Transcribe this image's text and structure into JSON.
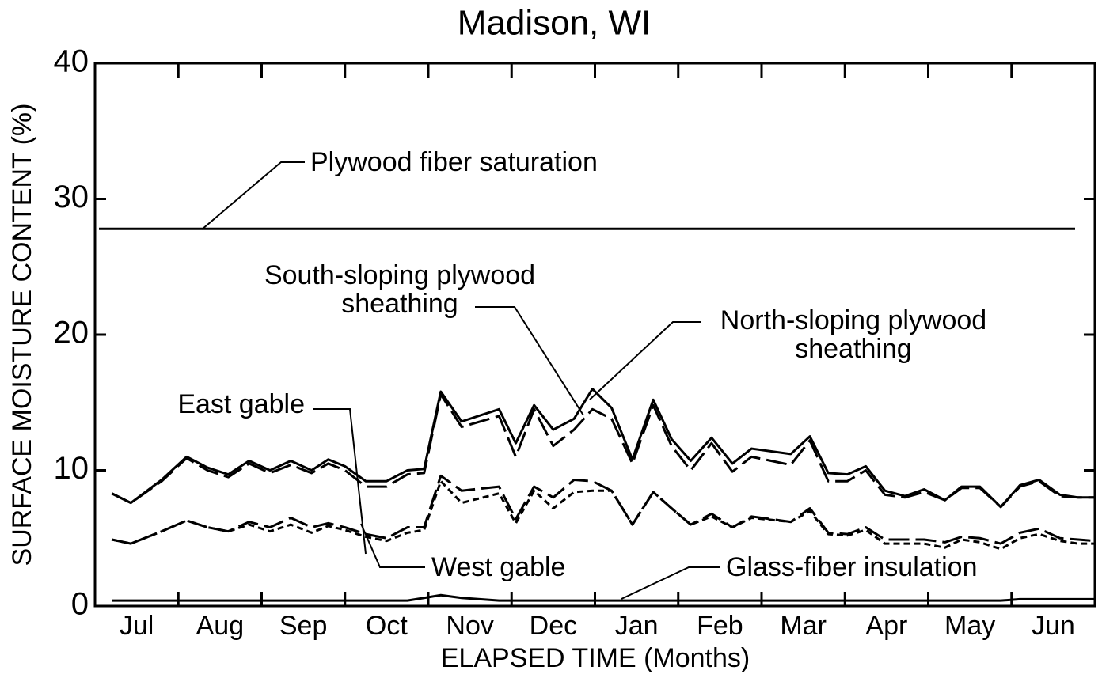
{
  "chart_data": {
    "type": "line",
    "title": "Madison, WI",
    "x_label": "ELAPSED TIME (Months)",
    "y_label": "SURFACE MOISTURE CONTENT (%)",
    "categories": [
      "Jul",
      "Aug",
      "Sep",
      "Oct",
      "Nov",
      "Dec",
      "Jan",
      "Feb",
      "Mar",
      "Apr",
      "May",
      "Jun"
    ],
    "xlim": [
      0,
      12
    ],
    "ylim": [
      0,
      40
    ],
    "yticks": [
      0,
      10,
      20,
      30,
      40
    ],
    "x": [
      0.2,
      0.43,
      0.8,
      1.1,
      1.35,
      1.6,
      1.85,
      2.1,
      2.35,
      2.6,
      2.8,
      3.0,
      3.25,
      3.5,
      3.75,
      3.95,
      4.15,
      4.4,
      4.85,
      5.05,
      5.27,
      5.5,
      5.75,
      5.97,
      6.2,
      6.45,
      6.7,
      6.92,
      7.15,
      7.4,
      7.65,
      7.88,
      8.35,
      8.58,
      8.8,
      9.03,
      9.25,
      9.48,
      9.72,
      9.95,
      10.2,
      10.4,
      10.62,
      10.87,
      11.1,
      11.33,
      11.58,
      11.8,
      12
    ],
    "series": [
      {
        "color": "#000000",
        "dash": "none",
        "values": [
          8.3,
          7.6,
          9.3,
          11.0,
          10.2,
          9.7,
          10.7,
          10.0,
          10.7,
          10.0,
          10.8,
          10.3,
          9.2,
          9.2,
          10.0,
          10.1,
          15.8,
          13.6,
          14.5,
          12.0,
          14.8,
          13.0,
          13.8,
          16.0,
          14.6,
          10.8,
          15.2,
          12.3,
          10.7,
          12.4,
          10.5,
          11.6,
          11.2,
          12.5,
          9.8,
          9.7,
          10.3,
          8.5,
          8.1,
          8.6,
          7.8,
          8.8,
          8.8,
          7.3,
          8.9,
          9.3,
          8.2,
          8.0,
          8.0
        ]
      },
      {
        "color": "#000000",
        "dash": "26 8",
        "values": [
          8.3,
          7.6,
          9.2,
          10.9,
          10.0,
          9.5,
          10.5,
          9.8,
          10.4,
          9.8,
          10.5,
          10.0,
          8.8,
          8.8,
          9.7,
          9.8,
          15.6,
          13.2,
          14.0,
          11.0,
          14.5,
          11.8,
          13.0,
          14.5,
          13.8,
          10.5,
          14.8,
          11.8,
          10.0,
          12.0,
          9.9,
          11.0,
          10.4,
          12.2,
          9.2,
          9.2,
          10.0,
          8.2,
          8.0,
          8.4,
          7.8,
          8.7,
          8.7,
          7.3,
          8.8,
          9.2,
          8.1,
          8.0,
          8.0
        ]
      },
      {
        "color": "#000000",
        "dash": "26 8",
        "values": [
          4.9,
          4.6,
          5.5,
          6.3,
          5.8,
          5.5,
          6.2,
          5.8,
          6.5,
          5.8,
          6.1,
          5.8,
          5.3,
          5.0,
          5.8,
          5.8,
          9.6,
          8.5,
          8.8,
          6.4,
          8.8,
          8.0,
          9.3,
          9.2,
          8.5,
          6.0,
          8.4,
          7.2,
          6.0,
          6.8,
          5.8,
          6.6,
          6.2,
          7.2,
          5.4,
          5.3,
          5.8,
          4.9,
          4.9,
          4.9,
          4.7,
          5.1,
          5.0,
          4.6,
          5.4,
          5.7,
          5.0,
          4.9,
          4.8
        ]
      },
      {
        "color": "#000000",
        "dash": "8 5",
        "values": [
          4.9,
          4.6,
          5.5,
          6.3,
          5.8,
          5.5,
          6.0,
          5.5,
          6.0,
          5.4,
          5.9,
          5.6,
          5.1,
          4.8,
          5.4,
          5.6,
          9.2,
          7.6,
          8.3,
          6.1,
          8.5,
          7.2,
          8.4,
          8.5,
          8.5,
          6.0,
          8.4,
          7.2,
          6.0,
          6.6,
          5.8,
          6.5,
          6.2,
          7.0,
          5.3,
          5.2,
          5.6,
          4.6,
          4.6,
          4.6,
          4.3,
          4.9,
          4.7,
          4.2,
          5.0,
          5.3,
          4.8,
          4.6,
          4.6
        ]
      },
      {
        "color": "#000000",
        "dash": "none",
        "values": [
          0.4,
          0.4,
          0.4,
          0.4,
          0.4,
          0.4,
          0.4,
          0.4,
          0.4,
          0.4,
          0.4,
          0.4,
          0.4,
          0.4,
          0.4,
          0.6,
          0.8,
          0.6,
          0.4,
          0.4,
          0.4,
          0.4,
          0.4,
          0.4,
          0.4,
          0.4,
          0.4,
          0.4,
          0.4,
          0.4,
          0.4,
          0.4,
          0.4,
          0.4,
          0.4,
          0.4,
          0.4,
          0.4,
          0.4,
          0.4,
          0.4,
          0.4,
          0.4,
          0.4,
          0.5,
          0.5,
          0.5,
          0.5,
          0.5
        ]
      }
    ],
    "reference_line": {
      "value": 27.8,
      "label": "Plywood fiber saturation"
    },
    "annotations": [
      {
        "lines": [
          "South-sloping plywood",
          "sheathing"
        ]
      },
      {
        "lines": [
          "North-sloping plywood",
          "sheathing"
        ]
      },
      {
        "lines": [
          "East gable"
        ]
      },
      {
        "lines": [
          "West gable"
        ]
      },
      {
        "lines": [
          "Glass-fiber insulation"
        ]
      }
    ]
  }
}
